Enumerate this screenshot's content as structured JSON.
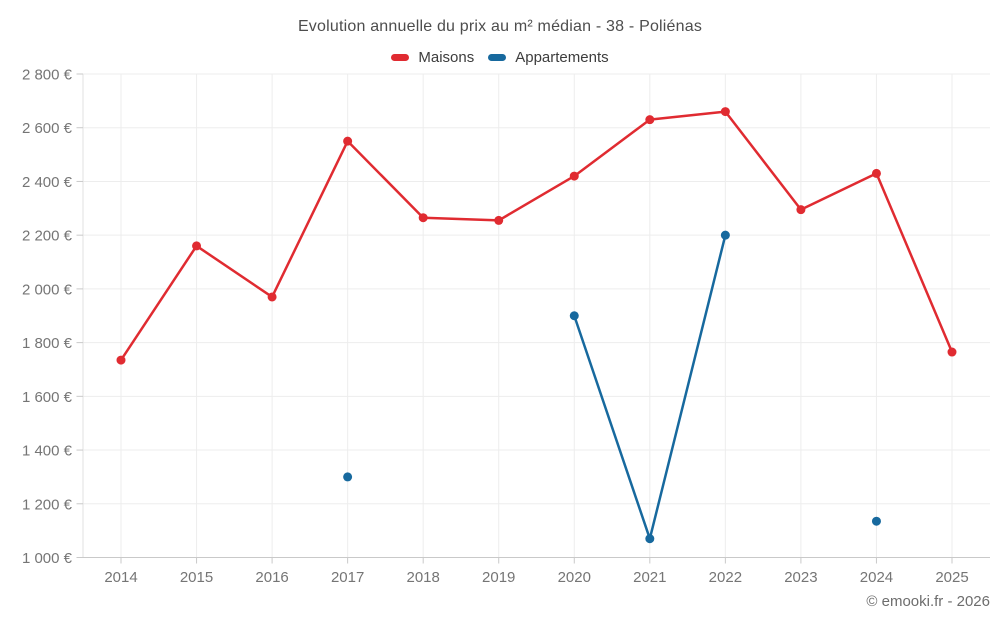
{
  "chart_data": {
    "type": "line",
    "title": "Evolution annuelle du prix au m² médian - 38 - Poliénas",
    "categories": [
      "2014",
      "2015",
      "2016",
      "2017",
      "2018",
      "2019",
      "2020",
      "2021",
      "2022",
      "2023",
      "2024",
      "2025"
    ],
    "series": [
      {
        "name": "Maisons",
        "color": "#e02b31",
        "values": [
          1735,
          2160,
          1970,
          2550,
          2265,
          2255,
          2420,
          2630,
          2660,
          2295,
          2430,
          1765
        ]
      },
      {
        "name": "Appartements",
        "color": "#17699e",
        "values": [
          null,
          null,
          null,
          1300,
          null,
          null,
          1900,
          1070,
          2200,
          null,
          1135,
          null
        ]
      }
    ],
    "xlabel": "",
    "ylabel": "",
    "ylim": [
      1000,
      2800
    ],
    "y_ticks": [
      1000,
      1200,
      1400,
      1600,
      1800,
      2000,
      2200,
      2400,
      2600,
      2800
    ],
    "y_tick_labels": [
      "1 000 €",
      "1 200 €",
      "1 400 €",
      "1 600 €",
      "1 800 €",
      "2 000 €",
      "2 200 €",
      "2 400 €",
      "2 600 €",
      "2 800 €"
    ],
    "grid": true,
    "legend_position": "top",
    "marker": "circle"
  },
  "footer": {
    "copyright": "© emooki.fr - 2026"
  }
}
